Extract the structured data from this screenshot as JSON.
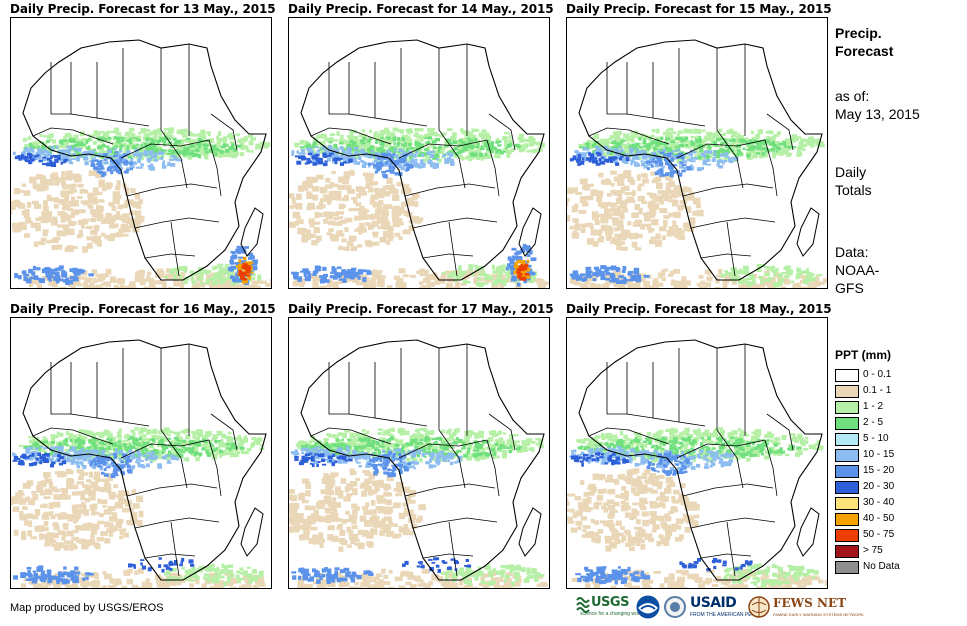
{
  "panels": [
    {
      "title": "Daily Precip. Forecast for 13 May., 2015"
    },
    {
      "title": "Daily Precip. Forecast for 14 May., 2015"
    },
    {
      "title": "Daily Precip. Forecast for 15 May., 2015"
    },
    {
      "title": "Daily Precip. Forecast for 16 May., 2015"
    },
    {
      "title": "Daily Precip. Forecast for 17 May., 2015"
    },
    {
      "title": "Daily Precip. Forecast for 18 May., 2015"
    }
  ],
  "sidebar": {
    "title_line1": "Precip.",
    "title_line2": "Forecast",
    "asof_label": "as of:",
    "asof_date": "May 13, 2015",
    "totals_line1": "Daily",
    "totals_line2": "Totals",
    "data_line1": "Data:",
    "data_line2": "NOAA-",
    "data_line3": "GFS"
  },
  "legend": {
    "title": "PPT (mm)",
    "items": [
      {
        "label": "0 - 0.1",
        "color": "#ffffff"
      },
      {
        "label": "0.1 - 1",
        "color": "#ead7b7"
      },
      {
        "label": "1 - 2",
        "color": "#b6f0a6"
      },
      {
        "label": "2 - 5",
        "color": "#6fe07d"
      },
      {
        "label": "5 - 10",
        "color": "#b3eaf5"
      },
      {
        "label": "10 - 15",
        "color": "#8dbdf0"
      },
      {
        "label": "15 - 20",
        "color": "#5c93ea"
      },
      {
        "label": "20 - 30",
        "color": "#2c5fd8"
      },
      {
        "label": "30 - 40",
        "color": "#fde27a"
      },
      {
        "label": "40 - 50",
        "color": "#f5a200"
      },
      {
        "label": "50 - 75",
        "color": "#ec3e00"
      },
      {
        "label": "> 75",
        "color": "#a3131a"
      },
      {
        "label": "No Data",
        "color": "#8f8f8f"
      }
    ]
  },
  "credit": "Map produced by USGS/EROS",
  "logos": {
    "usgs": "USGS",
    "usgs_tag": "science for a changing world",
    "usaid": "USAID",
    "usaid_tag": "FROM THE AMERICAN PEOPLE",
    "fews": "FEWS NET",
    "fews_tag": "FAMINE EARLY WARNING SYSTEMS NETWORK"
  }
}
